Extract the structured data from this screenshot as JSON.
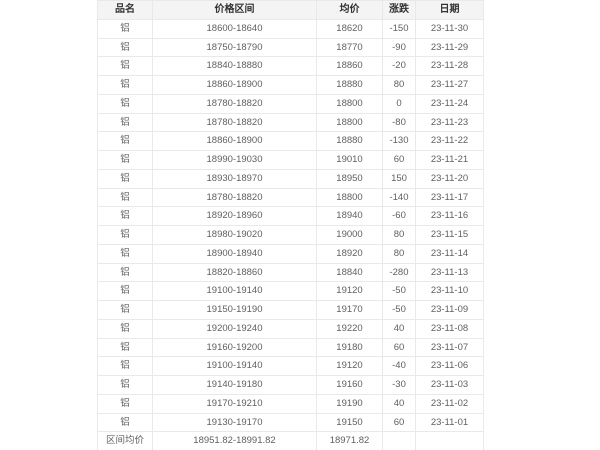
{
  "colors": {
    "page_background": "#ffffff",
    "header_background": "#f4f4f4",
    "grid_border": "#e9e9e9",
    "header_text": "#333333",
    "body_text": "#606060"
  },
  "chart_data": {
    "type": "table",
    "title": "",
    "columns": [
      "品名",
      "价格区间",
      "均价",
      "涨跌",
      "日期"
    ],
    "rows": [
      [
        "铝",
        "18600-18640",
        "18620",
        "-150",
        "23-11-30"
      ],
      [
        "铝",
        "18750-18790",
        "18770",
        "-90",
        "23-11-29"
      ],
      [
        "铝",
        "18840-18880",
        "18860",
        "-20",
        "23-11-28"
      ],
      [
        "铝",
        "18860-18900",
        "18880",
        "80",
        "23-11-27"
      ],
      [
        "铝",
        "18780-18820",
        "18800",
        "0",
        "23-11-24"
      ],
      [
        "铝",
        "18780-18820",
        "18800",
        "-80",
        "23-11-23"
      ],
      [
        "铝",
        "18860-18900",
        "18880",
        "-130",
        "23-11-22"
      ],
      [
        "铝",
        "18990-19030",
        "19010",
        "60",
        "23-11-21"
      ],
      [
        "铝",
        "18930-18970",
        "18950",
        "150",
        "23-11-20"
      ],
      [
        "铝",
        "18780-18820",
        "18800",
        "-140",
        "23-11-17"
      ],
      [
        "铝",
        "18920-18960",
        "18940",
        "-60",
        "23-11-16"
      ],
      [
        "铝",
        "18980-19020",
        "19000",
        "80",
        "23-11-15"
      ],
      [
        "铝",
        "18900-18940",
        "18920",
        "80",
        "23-11-14"
      ],
      [
        "铝",
        "18820-18860",
        "18840",
        "-280",
        "23-11-13"
      ],
      [
        "铝",
        "19100-19140",
        "19120",
        "-50",
        "23-11-10"
      ],
      [
        "铝",
        "19150-19190",
        "19170",
        "-50",
        "23-11-09"
      ],
      [
        "铝",
        "19200-19240",
        "19220",
        "40",
        "23-11-08"
      ],
      [
        "铝",
        "19160-19200",
        "19180",
        "60",
        "23-11-07"
      ],
      [
        "铝",
        "19100-19140",
        "19120",
        "-40",
        "23-11-06"
      ],
      [
        "铝",
        "19140-19180",
        "19160",
        "-30",
        "23-11-03"
      ],
      [
        "铝",
        "19170-19210",
        "19190",
        "40",
        "23-11-02"
      ],
      [
        "铝",
        "19130-19170",
        "19150",
        "60",
        "23-11-01"
      ]
    ],
    "summary_row": [
      "区间均价",
      "18951.82-18991.82",
      "18971.82",
      "",
      ""
    ]
  }
}
